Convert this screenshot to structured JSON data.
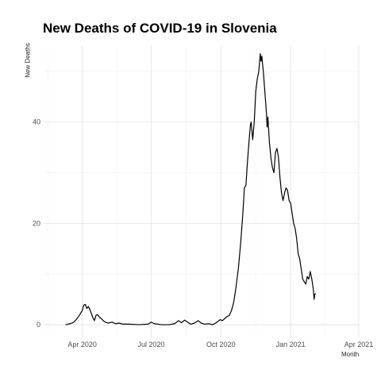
{
  "chart_data": {
    "type": "line",
    "title": "New Deaths of COVID-19 in Slovenia",
    "xlabel": "Month",
    "ylabel": "New Deaths",
    "x_ticks": [
      "Apr 2020",
      "Jul 2020",
      "Oct 2020",
      "Jan 2021",
      "Apr 2021"
    ],
    "y_ticks": [
      0,
      20,
      40
    ],
    "xlim": [
      "2020-02-10",
      "2021-04-01"
    ],
    "ylim": [
      -2.5,
      55
    ],
    "grid": true,
    "series": [
      {
        "color": "#000000",
        "points": [
          [
            "2020-03-10",
            0
          ],
          [
            "2020-03-16",
            0.2
          ],
          [
            "2020-03-20",
            0.4
          ],
          [
            "2020-03-24",
            1
          ],
          [
            "2020-03-28",
            1.8
          ],
          [
            "2020-04-01",
            2.8
          ],
          [
            "2020-04-03",
            3.9
          ],
          [
            "2020-04-05",
            4.0
          ],
          [
            "2020-04-07",
            3.2
          ],
          [
            "2020-04-09",
            3.6
          ],
          [
            "2020-04-11",
            3.0
          ],
          [
            "2020-04-13",
            2.2
          ],
          [
            "2020-04-15",
            1.4
          ],
          [
            "2020-04-17",
            0.8
          ],
          [
            "2020-04-19",
            1.8
          ],
          [
            "2020-04-21",
            2.0
          ],
          [
            "2020-04-23",
            1.6
          ],
          [
            "2020-04-26",
            1.2
          ],
          [
            "2020-04-30",
            0.6
          ],
          [
            "2020-05-05",
            0.3
          ],
          [
            "2020-05-10",
            0.5
          ],
          [
            "2020-05-15",
            0.2
          ],
          [
            "2020-05-20",
            0.3
          ],
          [
            "2020-05-25",
            0.1
          ],
          [
            "2020-06-01",
            0.1
          ],
          [
            "2020-06-15",
            0
          ],
          [
            "2020-06-27",
            0.1
          ],
          [
            "2020-07-01",
            0.5
          ],
          [
            "2020-07-05",
            0.2
          ],
          [
            "2020-07-15",
            0
          ],
          [
            "2020-07-25",
            0
          ],
          [
            "2020-08-01",
            0.2
          ],
          [
            "2020-08-06",
            0.8
          ],
          [
            "2020-08-10",
            0.4
          ],
          [
            "2020-08-14",
            0.9
          ],
          [
            "2020-08-18",
            0.5
          ],
          [
            "2020-08-22",
            0.1
          ],
          [
            "2020-08-27",
            0.3
          ],
          [
            "2020-09-01",
            0.8
          ],
          [
            "2020-09-05",
            0.3
          ],
          [
            "2020-09-10",
            0.1
          ],
          [
            "2020-09-15",
            0.2
          ],
          [
            "2020-09-20",
            0
          ],
          [
            "2020-09-25",
            0.4
          ],
          [
            "2020-09-30",
            1.0
          ],
          [
            "2020-10-03",
            0.8
          ],
          [
            "2020-10-06",
            1.2
          ],
          [
            "2020-10-09",
            1.6
          ],
          [
            "2020-10-12",
            1.8
          ],
          [
            "2020-10-15",
            2.8
          ],
          [
            "2020-10-18",
            4.5
          ],
          [
            "2020-10-21",
            7.5
          ],
          [
            "2020-10-24",
            11
          ],
          [
            "2020-10-27",
            16
          ],
          [
            "2020-10-30",
            22
          ],
          [
            "2020-11-01",
            27
          ],
          [
            "2020-11-03",
            27.5
          ],
          [
            "2020-11-05",
            32
          ],
          [
            "2020-11-07",
            36
          ],
          [
            "2020-11-09",
            39.5
          ],
          [
            "2020-11-10",
            40
          ],
          [
            "2020-11-12",
            36.5
          ],
          [
            "2020-11-14",
            40
          ],
          [
            "2020-11-16",
            46
          ],
          [
            "2020-11-18",
            48.5
          ],
          [
            "2020-11-20",
            50
          ],
          [
            "2020-11-22",
            53.5
          ],
          [
            "2020-11-23",
            52
          ],
          [
            "2020-11-24",
            53
          ],
          [
            "2020-11-26",
            50
          ],
          [
            "2020-11-28",
            46
          ],
          [
            "2020-11-30",
            42
          ],
          [
            "2020-12-01",
            39
          ],
          [
            "2020-12-02",
            41
          ],
          [
            "2020-12-04",
            36
          ],
          [
            "2020-12-06",
            33
          ],
          [
            "2020-12-08",
            31
          ],
          [
            "2020-12-10",
            30
          ],
          [
            "2020-12-12",
            34
          ],
          [
            "2020-12-14",
            34.8
          ],
          [
            "2020-12-16",
            33
          ],
          [
            "2020-12-18",
            29
          ],
          [
            "2020-12-20",
            26
          ],
          [
            "2020-12-22",
            24.5
          ],
          [
            "2020-12-24",
            26
          ],
          [
            "2020-12-26",
            27
          ],
          [
            "2020-12-28",
            26.5
          ],
          [
            "2020-12-30",
            24.5
          ],
          [
            "2021-01-01",
            24
          ],
          [
            "2021-01-03",
            22
          ],
          [
            "2021-01-05",
            20
          ],
          [
            "2021-01-07",
            19
          ],
          [
            "2021-01-09",
            17
          ],
          [
            "2021-01-11",
            14
          ],
          [
            "2021-01-13",
            13
          ],
          [
            "2021-01-15",
            11
          ],
          [
            "2021-01-17",
            9
          ],
          [
            "2021-01-19",
            8.5
          ],
          [
            "2021-01-21",
            8
          ],
          [
            "2021-01-23",
            9.5
          ],
          [
            "2021-01-25",
            9
          ],
          [
            "2021-01-27",
            10.5
          ],
          [
            "2021-01-29",
            9
          ],
          [
            "2021-01-31",
            7
          ],
          [
            "2021-02-01",
            5
          ],
          [
            "2021-02-02",
            6
          ],
          [
            "2021-02-03",
            6.2
          ]
        ]
      }
    ]
  }
}
